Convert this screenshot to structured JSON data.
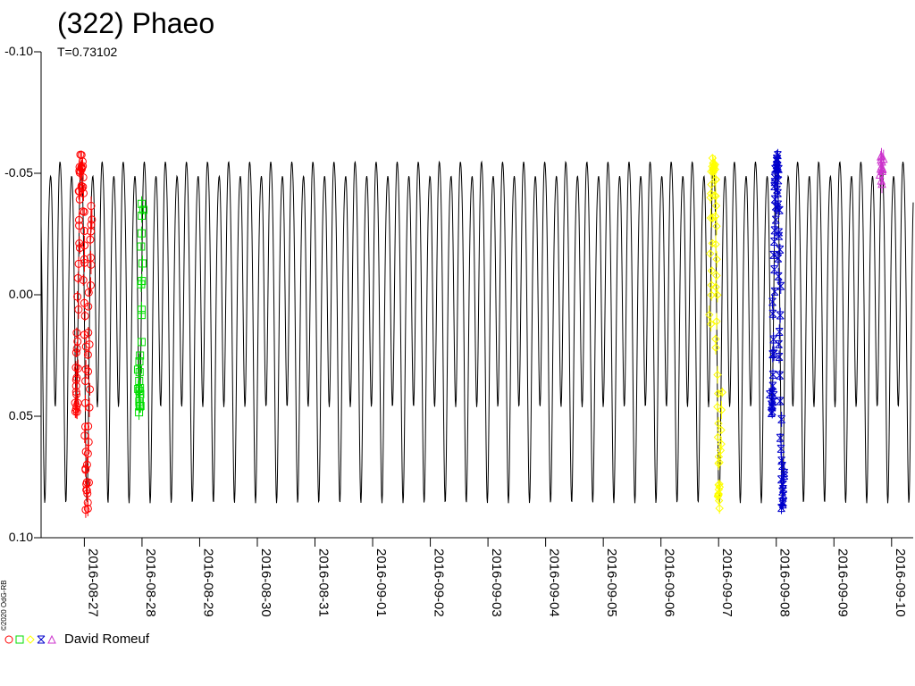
{
  "chart_data": {
    "type": "line",
    "title": "(322) Phaeo",
    "subtitle": "T=0.73102",
    "y_ticks": [
      "-0.10",
      "-0.05",
      "0.00",
      "0.05",
      "0.10"
    ],
    "y_tick_values": [
      -0.1,
      -0.05,
      0.0,
      0.05,
      0.1
    ],
    "ylim": [
      -0.1,
      0.1
    ],
    "y_inverted": true,
    "x_ticks": [
      "2016-08-27",
      "2016-08-28",
      "2016-08-29",
      "2016-08-30",
      "2016-08-31",
      "2016-09-01",
      "2016-09-02",
      "2016-09-03",
      "2016-09-04",
      "2016-09-05",
      "2016-09-06",
      "2016-09-07",
      "2016-09-08",
      "2016-09-09",
      "2016-09-10"
    ],
    "xlim": [
      "2016-08-26T06:00",
      "2016-09-10T09:00"
    ],
    "model": {
      "period_days": 0.36551,
      "components": [
        {
          "harmonic": 1,
          "amplitude": 0.02,
          "phase": 0.4
        },
        {
          "harmonic": 2,
          "amplitude": 0.058,
          "phase": 1.1
        },
        {
          "harmonic": 4,
          "amplitude": 0.008,
          "phase": 2.2
        }
      ],
      "color": "#000000"
    },
    "series": [
      {
        "date": "2016-08-27",
        "symbol": "circle",
        "color": "#ff0000",
        "x_start": "2016-08-26T20:10",
        "x_end": "2016-08-27T02:50"
      },
      {
        "date": "2016-08-28",
        "symbol": "square",
        "color": "#00dd00",
        "x_start": "2016-08-27T22:30",
        "x_end": "2016-08-28T00:20"
      },
      {
        "date": "2016-09-07",
        "symbol": "diamond",
        "color": "#ffff00",
        "x_start": "2016-09-06T20:30",
        "x_end": "2016-09-07T01:00"
      },
      {
        "date": "2016-09-08",
        "symbol": "cross",
        "color": "#0000cc",
        "x_start": "2016-09-07T21:50",
        "x_end": "2016-09-08T03:00"
      },
      {
        "date": "2016-09-10",
        "symbol": "triangle",
        "color": "#cc33cc",
        "x_start": "2016-09-09T19:30",
        "x_end": "2016-09-09T20:30"
      }
    ],
    "legend_label": "David Romeuf",
    "grid": false,
    "legend_position": "bottom-left"
  },
  "copyright": "©2020 OdG-RB"
}
